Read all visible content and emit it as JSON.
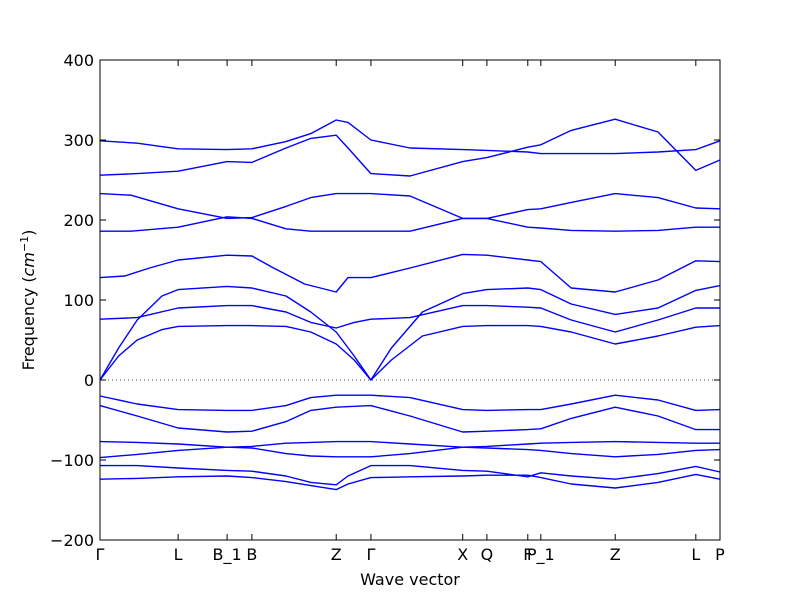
{
  "chart_data": {
    "type": "line",
    "title": "",
    "xlabel": "Wave vector",
    "ylabel_text": "Frequency (",
    "ylabel_unit": "cm",
    "ylabel_exp": "−1",
    "ylabel_close": ")",
    "xlim": [
      0,
      1
    ],
    "ylim": [
      -200,
      400
    ],
    "yticks": [
      -200,
      -100,
      0,
      100,
      200,
      300,
      400
    ],
    "ytick_labels": [
      "−200",
      "−100",
      "0",
      "100",
      "200",
      "300",
      "400"
    ],
    "xticks": [
      {
        "label": "Γ",
        "x": 0.0
      },
      {
        "label": "L",
        "x": 0.126
      },
      {
        "label": "B_1",
        "x": 0.205
      },
      {
        "label": "B",
        "x": 0.245
      },
      {
        "label": "Z",
        "x": 0.381
      },
      {
        "label": "Γ",
        "x": 0.437
      },
      {
        "label": "X",
        "x": 0.585
      },
      {
        "label": "Q",
        "x": 0.624
      },
      {
        "label": "F",
        "x": 0.69
      },
      {
        "label": "P_1",
        "x": 0.711
      },
      {
        "label": "Z",
        "x": 0.831
      },
      {
        "label": "L",
        "x": 0.961
      },
      {
        "label": "P",
        "x": 1.0
      }
    ],
    "zero_line": true,
    "line_color": "#0000ff",
    "series": [
      {
        "x": [
          0,
          0.06,
          0.126,
          0.205,
          0.245,
          0.3,
          0.34,
          0.381,
          0.4,
          0.437,
          0.5,
          0.585,
          0.624,
          0.69,
          0.711,
          0.76,
          0.831,
          0.9,
          0.961,
          1.0
        ],
        "values": [
          299,
          296,
          289,
          288,
          289,
          298,
          308,
          325,
          322,
          300,
          290,
          288,
          287,
          285,
          283,
          283,
          283,
          285,
          288,
          299
        ]
      },
      {
        "x": [
          0,
          0.06,
          0.126,
          0.205,
          0.245,
          0.3,
          0.34,
          0.381,
          0.4,
          0.437,
          0.5,
          0.585,
          0.624,
          0.69,
          0.711,
          0.76,
          0.831,
          0.9,
          0.961,
          1.0
        ],
        "values": [
          256,
          258,
          261,
          273,
          272,
          290,
          302,
          306,
          290,
          258,
          255,
          273,
          278,
          291,
          294,
          312,
          326,
          310,
          262,
          275
        ]
      },
      {
        "x": [
          0,
          0.05,
          0.126,
          0.205,
          0.245,
          0.3,
          0.34,
          0.381,
          0.437,
          0.5,
          0.585,
          0.624,
          0.69,
          0.711,
          0.76,
          0.831,
          0.9,
          0.961,
          1.0
        ],
        "values": [
          233,
          231,
          214,
          202,
          203,
          217,
          228,
          233,
          233,
          230,
          202,
          202,
          213,
          214,
          222,
          233,
          228,
          215,
          214
        ]
      },
      {
        "x": [
          0,
          0.05,
          0.126,
          0.205,
          0.245,
          0.3,
          0.34,
          0.381,
          0.437,
          0.5,
          0.585,
          0.624,
          0.69,
          0.711,
          0.76,
          0.831,
          0.9,
          0.961,
          1.0
        ],
        "values": [
          186,
          186,
          191,
          204,
          202,
          189,
          186,
          186,
          186,
          186,
          202,
          202,
          191,
          190,
          187,
          186,
          187,
          191,
          191
        ]
      },
      {
        "x": [
          0,
          0.04,
          0.08,
          0.126,
          0.205,
          0.245,
          0.28,
          0.33,
          0.381,
          0.4,
          0.437,
          0.5,
          0.585,
          0.624,
          0.69,
          0.711,
          0.76,
          0.831,
          0.9,
          0.961,
          1.0
        ],
        "values": [
          128,
          130,
          140,
          150,
          156,
          155,
          140,
          120,
          110,
          128,
          128,
          140,
          157,
          156,
          150,
          148,
          115,
          110,
          125,
          149,
          148
        ]
      },
      {
        "x": [
          0,
          0.03,
          0.06,
          0.1,
          0.126,
          0.205,
          0.245,
          0.3,
          0.34,
          0.381,
          0.41,
          0.437,
          0.47,
          0.52,
          0.585,
          0.624,
          0.69,
          0.711,
          0.76,
          0.831,
          0.9,
          0.961,
          1.0
        ],
        "values": [
          0,
          40,
          75,
          105,
          113,
          117,
          115,
          105,
          85,
          60,
          30,
          0,
          40,
          85,
          108,
          113,
          115,
          113,
          95,
          82,
          90,
          112,
          118
        ]
      },
      {
        "x": [
          0,
          0.06,
          0.126,
          0.205,
          0.245,
          0.3,
          0.34,
          0.381,
          0.41,
          0.437,
          0.5,
          0.585,
          0.624,
          0.69,
          0.711,
          0.76,
          0.831,
          0.9,
          0.961,
          1.0
        ],
        "values": [
          76,
          78,
          90,
          93,
          93,
          85,
          72,
          65,
          72,
          76,
          78,
          93,
          93,
          91,
          90,
          75,
          60,
          75,
          90,
          90
        ]
      },
      {
        "x": [
          0,
          0.03,
          0.06,
          0.1,
          0.126,
          0.205,
          0.245,
          0.3,
          0.34,
          0.381,
          0.41,
          0.437,
          0.47,
          0.52,
          0.585,
          0.624,
          0.69,
          0.711,
          0.76,
          0.831,
          0.9,
          0.961,
          1.0
        ],
        "values": [
          0,
          30,
          50,
          63,
          67,
          68,
          68,
          67,
          60,
          45,
          25,
          0,
          25,
          55,
          67,
          68,
          68,
          67,
          60,
          45,
          55,
          66,
          68
        ]
      },
      {
        "x": [
          0,
          0.06,
          0.126,
          0.205,
          0.245,
          0.3,
          0.34,
          0.381,
          0.437,
          0.5,
          0.585,
          0.624,
          0.69,
          0.711,
          0.76,
          0.831,
          0.9,
          0.961,
          1.0
        ],
        "values": [
          -20,
          -30,
          -37,
          -38,
          -38,
          -32,
          -22,
          -19,
          -19,
          -22,
          -37,
          -38,
          -37,
          -37,
          -30,
          -19,
          -25,
          -38,
          -37
        ]
      },
      {
        "x": [
          0,
          0.06,
          0.126,
          0.205,
          0.245,
          0.3,
          0.34,
          0.381,
          0.437,
          0.5,
          0.585,
          0.624,
          0.69,
          0.711,
          0.76,
          0.831,
          0.9,
          0.961,
          1.0
        ],
        "values": [
          -32,
          -45,
          -60,
          -65,
          -64,
          -52,
          -38,
          -34,
          -32,
          -45,
          -65,
          -64,
          -62,
          -61,
          -48,
          -34,
          -45,
          -62,
          -62
        ]
      },
      {
        "x": [
          0,
          0.06,
          0.126,
          0.205,
          0.245,
          0.3,
          0.34,
          0.381,
          0.437,
          0.5,
          0.585,
          0.624,
          0.69,
          0.711,
          0.76,
          0.831,
          0.9,
          0.961,
          1.0
        ],
        "values": [
          -77,
          -78,
          -80,
          -84,
          -83,
          -79,
          -78,
          -77,
          -77,
          -80,
          -84,
          -83,
          -80,
          -79,
          -78,
          -77,
          -78,
          -79,
          -79
        ]
      },
      {
        "x": [
          0,
          0.06,
          0.126,
          0.205,
          0.245,
          0.3,
          0.34,
          0.381,
          0.437,
          0.5,
          0.585,
          0.624,
          0.69,
          0.711,
          0.76,
          0.831,
          0.9,
          0.961,
          1.0
        ],
        "values": [
          -97,
          -93,
          -88,
          -84,
          -85,
          -92,
          -95,
          -96,
          -96,
          -92,
          -84,
          -85,
          -87,
          -88,
          -92,
          -96,
          -93,
          -88,
          -87
        ]
      },
      {
        "x": [
          0,
          0.06,
          0.126,
          0.205,
          0.245,
          0.3,
          0.34,
          0.381,
          0.4,
          0.437,
          0.5,
          0.585,
          0.624,
          0.69,
          0.711,
          0.76,
          0.831,
          0.9,
          0.961,
          1.0
        ],
        "values": [
          -107,
          -107,
          -110,
          -113,
          -114,
          -120,
          -128,
          -131,
          -120,
          -107,
          -107,
          -113,
          -114,
          -121,
          -116,
          -120,
          -124,
          -117,
          -108,
          -115
        ]
      },
      {
        "x": [
          0,
          0.06,
          0.126,
          0.205,
          0.245,
          0.3,
          0.34,
          0.381,
          0.4,
          0.437,
          0.5,
          0.585,
          0.624,
          0.69,
          0.711,
          0.76,
          0.831,
          0.9,
          0.961,
          1.0
        ],
        "values": [
          -124,
          -123,
          -121,
          -120,
          -122,
          -127,
          -132,
          -137,
          -130,
          -122,
          -121,
          -120,
          -119,
          -119,
          -122,
          -130,
          -135,
          -128,
          -118,
          -124
        ]
      }
    ]
  }
}
